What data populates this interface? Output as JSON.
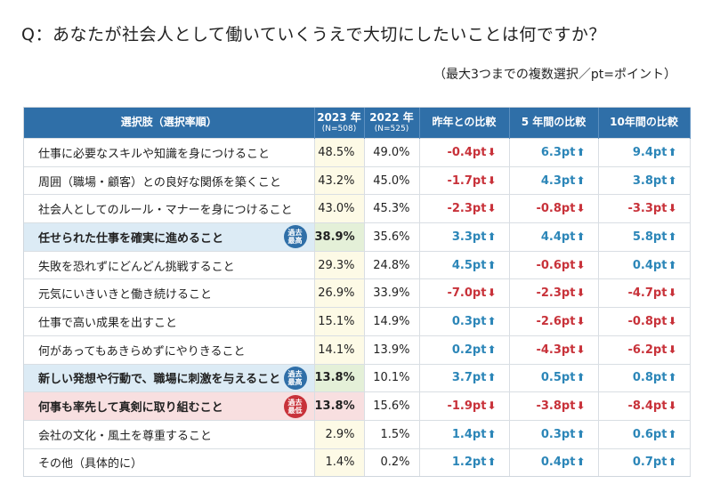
{
  "question": "Q：あなたが社会人として働いていくうえで大切にしたいことは何ですか？",
  "note": "（最大3つまでの複数選択／pt=ポイント）",
  "headers": {
    "item": "選択肢（選択率順）",
    "y2023": "2023 年",
    "y2023_n": "(N=508)",
    "y2022": "2022 年",
    "y2022_n": "(N=525)",
    "yoy": "昨年との比較",
    "five": "5 年間の比較",
    "ten": "10年間の比較"
  },
  "badges": {
    "high_line1": "過去",
    "high_line2": "最高",
    "low_line1": "過去",
    "low_line2": "最低"
  },
  "rows": [
    {
      "item": "仕事に必要なスキルや知識を身につけること",
      "y2023": "48.5%",
      "y2022": "49.0%",
      "yoy": "-0.4pt",
      "yoy_dir": "down",
      "five": "6.3pt",
      "five_dir": "up",
      "ten": "9.4pt",
      "ten_dir": "up",
      "highlight": ""
    },
    {
      "item": "周囲（職場・顧客）との良好な関係を築くこと",
      "y2023": "43.2%",
      "y2022": "45.0%",
      "yoy": "-1.7pt",
      "yoy_dir": "down",
      "five": "4.3pt",
      "five_dir": "up",
      "ten": "3.8pt",
      "ten_dir": "up",
      "highlight": ""
    },
    {
      "item": "社会人としてのルール・マナーを身につけること",
      "y2023": "43.0%",
      "y2022": "45.3%",
      "yoy": "-2.3pt",
      "yoy_dir": "down",
      "five": "-0.8pt",
      "five_dir": "down",
      "ten": "-3.3pt",
      "ten_dir": "down",
      "highlight": ""
    },
    {
      "item": "任せられた仕事を確実に進めること",
      "y2023": "38.9%",
      "y2022": "35.6%",
      "yoy": "3.3pt",
      "yoy_dir": "up",
      "five": "4.4pt",
      "five_dir": "up",
      "ten": "5.8pt",
      "ten_dir": "up",
      "highlight": "high"
    },
    {
      "item": "失敗を恐れずにどんどん挑戦すること",
      "y2023": "29.3%",
      "y2022": "24.8%",
      "yoy": "4.5pt",
      "yoy_dir": "up",
      "five": "-0.6pt",
      "five_dir": "down",
      "ten": "0.4pt",
      "ten_dir": "up",
      "highlight": ""
    },
    {
      "item": "元気にいきいきと働き続けること",
      "y2023": "26.9%",
      "y2022": "33.9%",
      "yoy": "-7.0pt",
      "yoy_dir": "down",
      "five": "-2.3pt",
      "five_dir": "down",
      "ten": "-4.7pt",
      "ten_dir": "down",
      "highlight": ""
    },
    {
      "item": "仕事で高い成果を出すこと",
      "y2023": "15.1%",
      "y2022": "14.9%",
      "yoy": "0.3pt",
      "yoy_dir": "up",
      "five": "-2.6pt",
      "five_dir": "down",
      "ten": "-0.8pt",
      "ten_dir": "down",
      "highlight": ""
    },
    {
      "item": "何があってもあきらめずにやりきること",
      "y2023": "14.1%",
      "y2022": "13.9%",
      "yoy": "0.2pt",
      "yoy_dir": "up",
      "five": "-4.3pt",
      "five_dir": "down",
      "ten": "-6.2pt",
      "ten_dir": "down",
      "highlight": ""
    },
    {
      "item": "新しい発想や行動で、職場に刺激を与えること",
      "y2023": "13.8%",
      "y2022": "10.1%",
      "yoy": "3.7pt",
      "yoy_dir": "up",
      "five": "0.5pt",
      "five_dir": "up",
      "ten": "0.8pt",
      "ten_dir": "up",
      "highlight": "high"
    },
    {
      "item": "何事も率先して真剣に取り組むこと",
      "y2023": "13.8%",
      "y2022": "15.6%",
      "yoy": "-1.9pt",
      "yoy_dir": "down",
      "five": "-3.8pt",
      "five_dir": "down",
      "ten": "-8.4pt",
      "ten_dir": "down",
      "highlight": "low"
    },
    {
      "item": "会社の文化・風土を尊重すること",
      "y2023": "2.9%",
      "y2022": "1.5%",
      "yoy": "1.4pt",
      "yoy_dir": "up",
      "five": "0.3pt",
      "five_dir": "up",
      "ten": "0.6pt",
      "ten_dir": "up",
      "highlight": ""
    },
    {
      "item": "その他（具体的に）",
      "y2023": "1.4%",
      "y2022": "0.2%",
      "yoy": "1.2pt",
      "yoy_dir": "up",
      "five": "0.4pt",
      "five_dir": "up",
      "ten": "0.7pt",
      "ten_dir": "up",
      "highlight": ""
    }
  ],
  "colors": {
    "header_bg": "#2f6fa8",
    "up": "#2c86b8",
    "down": "#c8323a",
    "col2023_bg": "#fdfae6"
  },
  "icons": {
    "up": "arrow-up-icon",
    "down": "arrow-down-icon"
  }
}
